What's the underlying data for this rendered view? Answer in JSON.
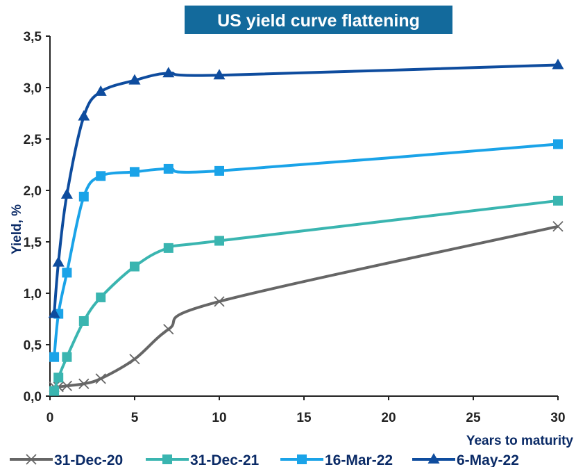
{
  "chart_data": {
    "type": "line",
    "title": "US yield curve flattening",
    "xlabel": "Years to maturity",
    "ylabel": "Yield, %",
    "xlim": [
      0,
      30
    ],
    "ylim": [
      0,
      3.5
    ],
    "x_ticks": [
      "0",
      "5",
      "10",
      "15",
      "20",
      "25",
      "30"
    ],
    "y_ticks": [
      "0,0",
      "0,5",
      "1,0",
      "1,5",
      "2,0",
      "2,5",
      "3,0",
      "3,5"
    ],
    "grid": false,
    "legend": "bottom",
    "series": [
      {
        "name": "31-Dec-20",
        "color": "#666666",
        "marker": "x",
        "x": [
          0.25,
          0.5,
          1,
          2,
          3,
          5,
          7,
          10,
          30
        ],
        "y": [
          0.09,
          0.09,
          0.1,
          0.12,
          0.17,
          0.36,
          0.65,
          0.92,
          1.65
        ]
      },
      {
        "name": "31-Dec-21",
        "color": "#3ab5b0",
        "marker": "square",
        "x": [
          0.25,
          0.5,
          1,
          2,
          3,
          5,
          7,
          10,
          30
        ],
        "y": [
          0.05,
          0.18,
          0.38,
          0.73,
          0.96,
          1.26,
          1.44,
          1.51,
          1.9
        ]
      },
      {
        "name": "16-Mar-22",
        "color": "#1aa3e8",
        "marker": "square",
        "x": [
          0.25,
          0.5,
          1,
          2,
          3,
          5,
          7,
          10,
          30
        ],
        "y": [
          0.38,
          0.8,
          1.2,
          1.94,
          2.14,
          2.18,
          2.21,
          2.19,
          2.45
        ]
      },
      {
        "name": "6-May-22",
        "color": "#0e4c9e",
        "marker": "triangle",
        "x": [
          0.25,
          0.5,
          1,
          2,
          3,
          5,
          7,
          10,
          30
        ],
        "y": [
          0.8,
          1.3,
          1.96,
          2.72,
          2.96,
          3.07,
          3.14,
          3.12,
          3.22
        ]
      }
    ]
  },
  "colors": {
    "title_background": "#136a9c",
    "axis": "#222222"
  }
}
